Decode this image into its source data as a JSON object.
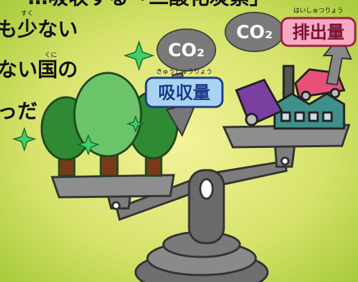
{
  "caption": [
    {
      "text": "…吸収する「二酸化炭素」"
    },
    {
      "text": "も少ない",
      "ruby": "すく"
    },
    {
      "text": "ない国の",
      "ruby": "くに"
    },
    {
      "text": "っだ"
    }
  ],
  "left_pan": {
    "cloud": "CO₂",
    "label": "吸収量",
    "ruby": "きゅうしゅうりょう"
  },
  "right_pan": {
    "cloud": "CO₂",
    "label": "排出量",
    "ruby": "はいしゅつりょう"
  }
}
